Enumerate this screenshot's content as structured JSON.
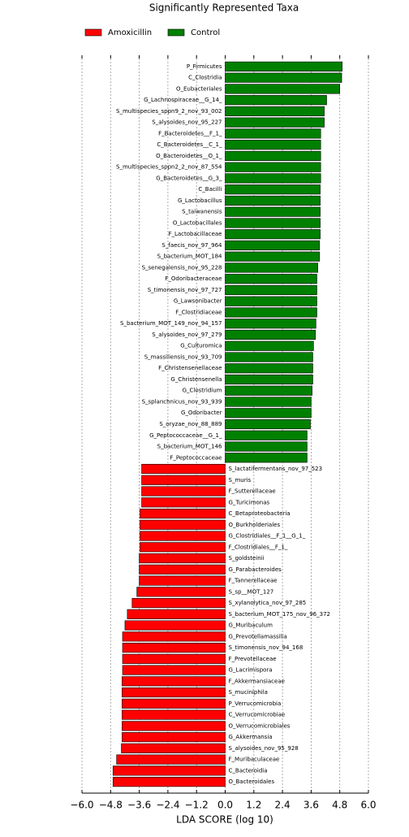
{
  "chart_data": {
    "type": "bar",
    "orientation": "horizontal",
    "title": "Significantly Represented Taxa",
    "x_label": "LDA SCORE (log 10)",
    "categories": [
      "P_Firmicutes",
      "C_Clostridia",
      "O_Eubacteriales",
      "G_Lachnospiraceae__G_14_",
      "S_multispecies_sppn9_2_nov_93_002",
      "S_alysoides_nov_95_227",
      "F_Bacteroidetes__F_1_",
      "C_Bacteroidetes__C_1_",
      "O_Bacteroidetes__O_1_",
      "S_multispecies_sppn2_2_nov_87_554",
      "G_Bacteroidetes__G_3_",
      "C_Bacilli",
      "G_Lactobacillus",
      "S_taiwanensis",
      "O_Lactobacillales",
      "F_Lactobacillaceae",
      "S_faecis_nov_97_964",
      "S_bacterium_MOT_184",
      "S_senegalensis_nov_95_228",
      "F_Odoribacteraceae",
      "S_timonensis_nov_97_727",
      "G_Lawsonibacter",
      "F_Clostridiaceae",
      "S_bacterium_MOT_149_nov_94_157",
      "S_alysoides_nov_97_279",
      "G_Culturomica",
      "S_massiliensis_nov_93_709",
      "F_Christensenellaceae",
      "G_Christensenella",
      "G_Clostridium",
      "S_splanchnicus_nov_93_939",
      "G_Odoribacter",
      "S_oryzae_nov_88_889",
      "G_Peptococcaceae__G_1_",
      "S_bacterium_MOT_146",
      "F_Peptococcaceae",
      "S_lactatifermentans_nov_97_523",
      "S_muris",
      "F_Sutterellaceae",
      "G_Turicimonas",
      "C_Betaproteobacteria",
      "O_Burkholderiales",
      "G_Clostridiales__F_1__G_1_",
      "F_Clostridiales__F_1_",
      "S_goldsteinii",
      "G_Parabacteroides",
      "F_Tannerellaceae",
      "S_sp__MOT_127",
      "S_xylanolytica_nov_97_285",
      "S_bacterium_MOT_175_nov_96_372",
      "G_Muribaculum",
      "G_Prevotellamassilia",
      "S_timonensis_nov_94_168",
      "F_Prevotellaceae",
      "G_Lacrimispora",
      "F_Akkermansiaceae",
      "S_muciniphila",
      "P_Verrucomicrobia",
      "C_Verrucomicrobiae",
      "O_Verrucomicrobiales",
      "G_Akkermansia",
      "S_alysoides_nov_95_928",
      "F_Muribaculaceae",
      "C_Bacteroidia",
      "O_Bacteroidales"
    ],
    "series": [
      {
        "name": "Amoxicillin",
        "color": "#ff0000",
        "values": [
          null,
          null,
          null,
          null,
          null,
          null,
          null,
          null,
          null,
          null,
          null,
          null,
          null,
          null,
          null,
          null,
          null,
          null,
          null,
          null,
          null,
          null,
          null,
          null,
          null,
          null,
          null,
          null,
          null,
          null,
          null,
          null,
          null,
          null,
          null,
          null,
          -3.5,
          -3.5,
          -3.5,
          -3.5,
          -3.57,
          -3.57,
          -3.57,
          -3.57,
          -3.6,
          -3.6,
          -3.6,
          -3.7,
          -3.9,
          -4.1,
          -4.2,
          -4.3,
          -4.3,
          -4.3,
          -4.3,
          -4.32,
          -4.32,
          -4.32,
          -4.32,
          -4.32,
          -4.32,
          -4.35,
          -4.55,
          -4.7,
          -4.7
        ]
      },
      {
        "name": "Control",
        "color": "#008000",
        "values": [
          4.9,
          4.88,
          4.8,
          4.25,
          4.15,
          4.15,
          4.0,
          4.0,
          4.0,
          4.0,
          4.0,
          3.98,
          3.98,
          3.98,
          3.98,
          3.98,
          3.95,
          3.95,
          3.88,
          3.84,
          3.84,
          3.84,
          3.84,
          3.8,
          3.78,
          3.7,
          3.67,
          3.67,
          3.67,
          3.64,
          3.6,
          3.6,
          3.57,
          3.43,
          3.43,
          3.43,
          null,
          null,
          null,
          null,
          null,
          null,
          null,
          null,
          null,
          null,
          null,
          null,
          null,
          null,
          null,
          null,
          null,
          null,
          null,
          null,
          null,
          null,
          null,
          null,
          null,
          null,
          null,
          null,
          null
        ]
      }
    ],
    "xlim": [
      -6.0,
      6.0
    ],
    "xticks": [
      {
        "value": -6.0,
        "label": "−6.0"
      },
      {
        "value": -4.8,
        "label": "−4.8"
      },
      {
        "value": -3.6,
        "label": "−3.6"
      },
      {
        "value": -2.4,
        "label": "−2.4"
      },
      {
        "value": -1.2,
        "label": "−1.2"
      },
      {
        "value": 0,
        "label": "0.0"
      },
      1.2,
      2.4,
      3.6,
      4.8,
      {
        "value": 6.0,
        "label": "6.0"
      }
    ],
    "grid": true,
    "legend": "top-left"
  }
}
